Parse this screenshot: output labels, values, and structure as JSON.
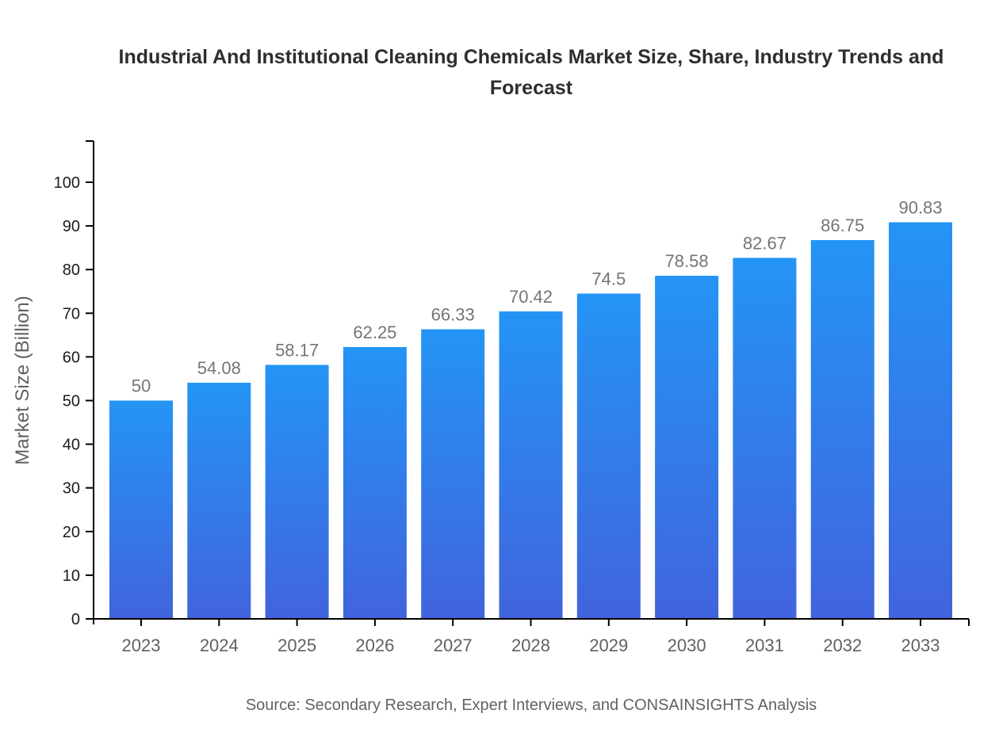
{
  "chart_data": {
    "type": "bar",
    "title": "Industrial And Institutional Cleaning Chemicals Market Size, Share, Industry Trends and Forecast",
    "categories": [
      "2023",
      "2024",
      "2025",
      "2026",
      "2027",
      "2028",
      "2029",
      "2030",
      "2031",
      "2032",
      "2033"
    ],
    "values": [
      50,
      54.08,
      58.17,
      62.25,
      66.33,
      70.42,
      74.5,
      78.58,
      82.67,
      86.75,
      90.83
    ],
    "value_labels": [
      "50",
      "54.08",
      "58.17",
      "62.25",
      "66.33",
      "70.42",
      "74.5",
      "78.58",
      "82.67",
      "86.75",
      "90.83"
    ],
    "xlabel": "",
    "ylabel": "Market Size (Billion)",
    "ylim": [
      0,
      100
    ],
    "ytick_step": 10,
    "ytick_labels": [
      "0",
      "10",
      "20",
      "30",
      "40",
      "50",
      "60",
      "70",
      "80",
      "90",
      "100"
    ],
    "grid": false,
    "legend": "none",
    "source_note": "Source: Secondary Research, Expert Interviews, and CONSAINSIGHTS Analysis",
    "colors": {
      "bar_gradient_top": "#2494f5",
      "bar_gradient_bottom": "#4164dc",
      "axis": "#000000",
      "title": "#2e2e2e",
      "y_tick_label": "#1c1c1c",
      "x_tick_label": "#616161",
      "value_label": "#757575",
      "axis_title": "#616161",
      "source": "#5f6368",
      "background": "#ffffff"
    }
  }
}
